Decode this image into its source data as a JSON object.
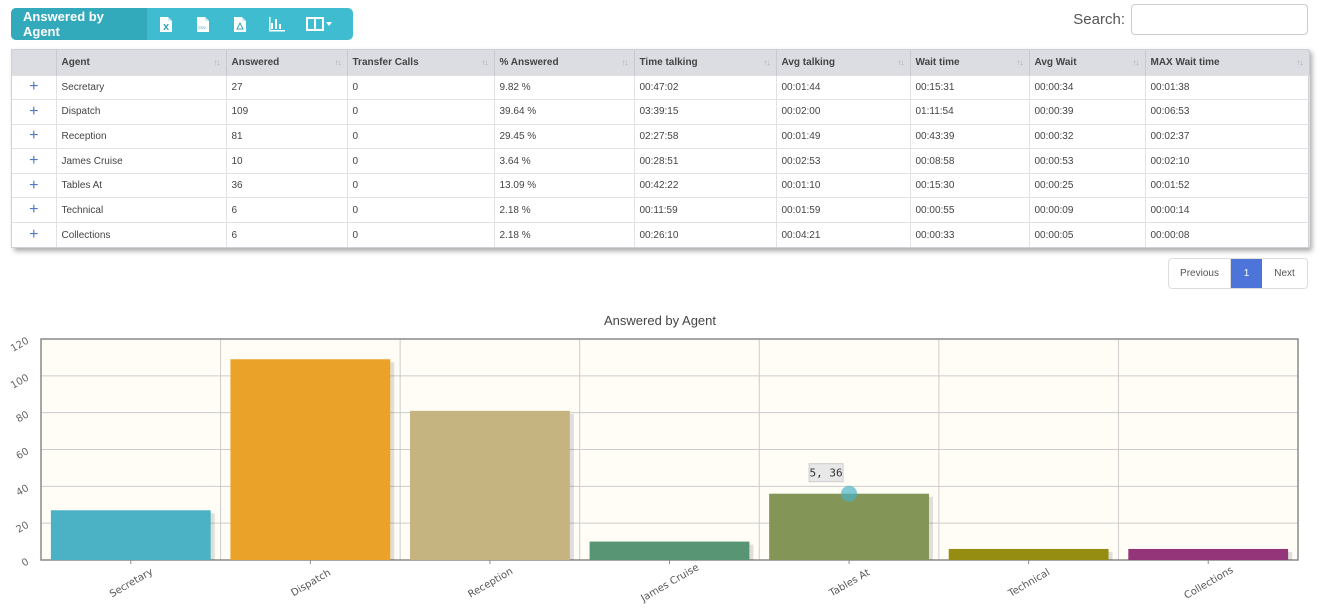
{
  "toolbar": {
    "title": "Answered by Agent",
    "buttons": [
      "excel-export",
      "csv-export",
      "pdf-export",
      "chart-toggle",
      "column-visibility"
    ],
    "accent": "#3fbcd0",
    "title_bg": "#33a9bc"
  },
  "search": {
    "label": "Search:",
    "value": "",
    "placeholder": ""
  },
  "table": {
    "headers": [
      "",
      "Agent",
      "Answered",
      "Transfer Calls",
      "% Answered",
      "Time talking",
      "Avg talking",
      "Wait time",
      "Avg Wait",
      "MAX Wait time"
    ],
    "rows": [
      [
        "+",
        "Secretary",
        "27",
        "0",
        "9.82 %",
        "00:47:02",
        "00:01:44",
        "00:15:31",
        "00:00:34",
        "00:01:38"
      ],
      [
        "+",
        "Dispatch",
        "109",
        "0",
        "39.64 %",
        "03:39:15",
        "00:02:00",
        "01:11:54",
        "00:00:39",
        "00:06:53"
      ],
      [
        "+",
        "Reception",
        "81",
        "0",
        "29.45 %",
        "02:27:58",
        "00:01:49",
        "00:43:39",
        "00:00:32",
        "00:02:37"
      ],
      [
        "+",
        "James Cruise",
        "10",
        "0",
        "3.64 %",
        "00:28:51",
        "00:02:53",
        "00:08:58",
        "00:00:53",
        "00:02:10"
      ],
      [
        "+",
        "Tables At",
        "36",
        "0",
        "13.09 %",
        "00:42:22",
        "00:01:10",
        "00:15:30",
        "00:00:25",
        "00:01:52"
      ],
      [
        "+",
        "Technical",
        "6",
        "0",
        "2.18 %",
        "00:11:59",
        "00:01:59",
        "00:00:55",
        "00:00:09",
        "00:00:14"
      ],
      [
        "+",
        "Collections",
        "6",
        "0",
        "2.18 %",
        "00:26:10",
        "00:04:21",
        "00:00:33",
        "00:00:05",
        "00:00:08"
      ]
    ]
  },
  "pagination": {
    "previous": "Previous",
    "current": "1",
    "next": "Next",
    "active_color": "#4c74d9"
  },
  "chart_data": {
    "type": "bar",
    "title": "Answered by Agent",
    "categories": [
      "Secretary",
      "Dispatch",
      "Reception",
      "James Cruise",
      "Tables At",
      "Technical",
      "Collections"
    ],
    "values": [
      27,
      109,
      81,
      10,
      36,
      6,
      6
    ],
    "colors": [
      "#4bb2c5",
      "#eaa228",
      "#c5b47f",
      "#579575",
      "#839557",
      "#958c12",
      "#953579"
    ],
    "ylim": [
      0,
      120
    ],
    "yticks": [
      0,
      20,
      40,
      60,
      80,
      100,
      120
    ],
    "grid": true,
    "background": "#fffdf6",
    "tooltip": {
      "text": "5, 36",
      "category": "Tables At",
      "value": 36
    }
  }
}
